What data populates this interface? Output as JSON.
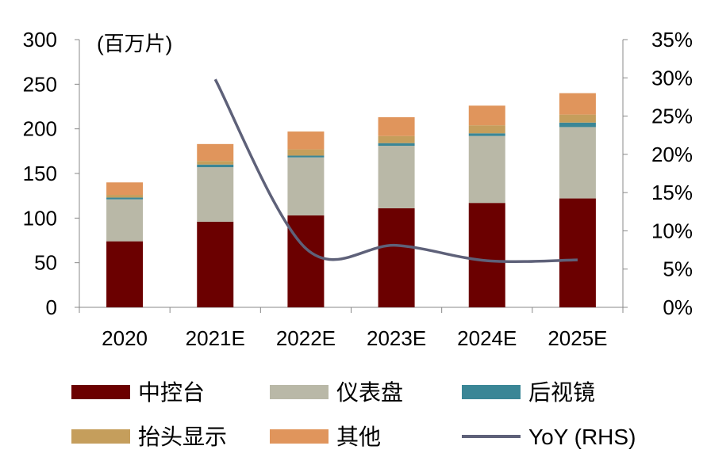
{
  "chart_data": {
    "type": "bar",
    "subtype": "stacked-bar-with-line",
    "unit_label": "(百万片)",
    "categories": [
      "2020",
      "2021E",
      "2022E",
      "2023E",
      "2024E",
      "2025E"
    ],
    "series": [
      {
        "name": "中控台",
        "color": "#6B0000",
        "values": [
          74,
          96,
          103,
          111,
          117,
          122
        ]
      },
      {
        "name": "仪表盘",
        "color": "#B9B8A7",
        "values": [
          47,
          61,
          65,
          70,
          75,
          80
        ]
      },
      {
        "name": "后视镜",
        "color": "#3A8696",
        "values": [
          2,
          3,
          2,
          3,
          3,
          5
        ]
      },
      {
        "name": "抬头显示",
        "color": "#C59E5C",
        "values": [
          3,
          4,
          7,
          8,
          9,
          9
        ]
      },
      {
        "name": "其他",
        "color": "#E0955C",
        "values": [
          14,
          19,
          20,
          21,
          22,
          24
        ]
      }
    ],
    "line": {
      "name": "YoY (RHS)",
      "color": "#5E6179",
      "values": [
        null,
        29.8,
        7.7,
        8.1,
        6.1,
        6.2
      ]
    },
    "y_left": {
      "min": 0,
      "max": 300,
      "ticks": [
        "0",
        "50",
        "100",
        "150",
        "200",
        "250",
        "300"
      ]
    },
    "y_right": {
      "min": 0,
      "max": 35,
      "ticks": [
        "0%",
        "5%",
        "10%",
        "15%",
        "20%",
        "25%",
        "30%",
        "35%"
      ]
    },
    "grid": false,
    "legend_placement": "bottom"
  }
}
